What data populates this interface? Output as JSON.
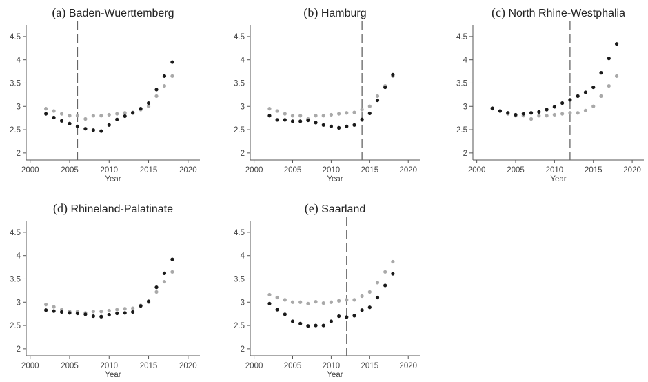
{
  "colors": {
    "series_black": "#1a1a1a",
    "series_grey": "#a9a9a9"
  },
  "chart_data": [
    {
      "type": "scatter",
      "panel_tag": "(a)",
      "title": "Baden-Wuerttemberg",
      "xlabel": "Year",
      "ylabel": "",
      "xlim": [
        1999.5,
        2021.5
      ],
      "ylim": [
        1.85,
        4.75
      ],
      "x_ticks": [
        2000,
        2005,
        2010,
        2015,
        2020
      ],
      "y_ticks": [
        2,
        2.5,
        3,
        3.5,
        4,
        4.5
      ],
      "x_tick_labels": [
        "2000",
        "2005",
        "2010",
        "2015",
        "2020"
      ],
      "y_tick_labels": [
        "2",
        "2.5",
        "3",
        "3.5",
        "4",
        "4.5"
      ],
      "vline": 2006,
      "grid": false,
      "x": [
        2002,
        2003,
        2004,
        2005,
        2006,
        2007,
        2008,
        2009,
        2010,
        2011,
        2012,
        2013,
        2014,
        2015,
        2016,
        2017,
        2018
      ],
      "series": [
        {
          "color": "#a9a9a9",
          "values": [
            2.95,
            2.9,
            2.84,
            2.8,
            2.8,
            2.73,
            2.8,
            2.8,
            2.82,
            2.84,
            2.86,
            2.87,
            2.93,
            3.0,
            3.22,
            3.44,
            3.65
          ]
        },
        {
          "color": "#1a1a1a",
          "values": [
            2.84,
            2.76,
            2.69,
            2.63,
            2.57,
            2.52,
            2.49,
            2.47,
            2.6,
            2.72,
            2.79,
            2.86,
            2.95,
            3.07,
            3.36,
            3.65,
            3.95
          ]
        }
      ]
    },
    {
      "type": "scatter",
      "panel_tag": "(b)",
      "title": "Hamburg",
      "xlabel": "Year",
      "ylabel": "",
      "xlim": [
        1999.5,
        2021.5
      ],
      "ylim": [
        1.85,
        4.75
      ],
      "x_ticks": [
        2000,
        2005,
        2010,
        2015,
        2020
      ],
      "y_ticks": [
        2,
        2.5,
        3,
        3.5,
        4,
        4.5
      ],
      "x_tick_labels": [
        "2000",
        "2005",
        "2010",
        "2015",
        "2020"
      ],
      "y_tick_labels": [
        "2",
        "2.5",
        "3",
        "3.5",
        "4",
        "4.5"
      ],
      "vline": 2014,
      "grid": false,
      "x": [
        2002,
        2003,
        2004,
        2005,
        2006,
        2007,
        2008,
        2009,
        2010,
        2011,
        2012,
        2013,
        2014,
        2015,
        2016,
        2017,
        2018
      ],
      "series": [
        {
          "color": "#a9a9a9",
          "values": [
            2.95,
            2.9,
            2.84,
            2.8,
            2.8,
            2.73,
            2.8,
            2.8,
            2.82,
            2.84,
            2.86,
            2.87,
            2.93,
            3.0,
            3.22,
            3.44,
            3.65
          ]
        },
        {
          "color": "#1a1a1a",
          "values": [
            2.8,
            2.71,
            2.71,
            2.68,
            2.68,
            2.7,
            2.65,
            2.6,
            2.57,
            2.54,
            2.57,
            2.6,
            2.72,
            2.85,
            3.13,
            3.41,
            3.68
          ]
        }
      ]
    },
    {
      "type": "scatter",
      "panel_tag": "(c)",
      "title": "North Rhine-Westphalia",
      "xlabel": "Year",
      "ylabel": "",
      "xlim": [
        1999.5,
        2021.5
      ],
      "ylim": [
        1.85,
        4.75
      ],
      "x_ticks": [
        2000,
        2005,
        2010,
        2015,
        2020
      ],
      "y_ticks": [
        2,
        2.5,
        3,
        3.5,
        4,
        4.5
      ],
      "x_tick_labels": [
        "2000",
        "2005",
        "2010",
        "2015",
        "2020"
      ],
      "y_tick_labels": [
        "2",
        "2.5",
        "3",
        "3.5",
        "4",
        "4.5"
      ],
      "vline": 2012,
      "grid": false,
      "x": [
        2002,
        2003,
        2004,
        2005,
        2006,
        2007,
        2008,
        2009,
        2010,
        2011,
        2012,
        2013,
        2014,
        2015,
        2016,
        2017,
        2018
      ],
      "series": [
        {
          "color": "#a9a9a9",
          "values": [
            2.95,
            2.9,
            2.84,
            2.8,
            2.8,
            2.73,
            2.8,
            2.8,
            2.82,
            2.84,
            2.86,
            2.86,
            2.91,
            3.0,
            3.22,
            3.44,
            3.65
          ]
        },
        {
          "color": "#1a1a1a",
          "values": [
            2.96,
            2.9,
            2.86,
            2.82,
            2.84,
            2.86,
            2.88,
            2.93,
            2.99,
            3.07,
            3.14,
            3.22,
            3.3,
            3.41,
            3.72,
            4.03,
            4.34
          ]
        }
      ]
    },
    {
      "type": "scatter",
      "panel_tag": "(d)",
      "title": "Rhineland-Palatinate",
      "xlabel": "Year",
      "ylabel": "",
      "xlim": [
        1999.5,
        2021.5
      ],
      "ylim": [
        1.85,
        4.75
      ],
      "x_ticks": [
        2000,
        2005,
        2010,
        2015,
        2020
      ],
      "y_ticks": [
        2,
        2.5,
        3,
        3.5,
        4,
        4.5
      ],
      "x_tick_labels": [
        "2000",
        "2005",
        "2010",
        "2015",
        "2020"
      ],
      "y_tick_labels": [
        "2",
        "2.5",
        "3",
        "3.5",
        "4",
        "4.5"
      ],
      "vline": null,
      "grid": false,
      "x": [
        2002,
        2003,
        2004,
        2005,
        2006,
        2007,
        2008,
        2009,
        2010,
        2011,
        2012,
        2013,
        2014,
        2015,
        2016,
        2017,
        2018
      ],
      "series": [
        {
          "color": "#a9a9a9",
          "values": [
            2.95,
            2.9,
            2.84,
            2.8,
            2.8,
            2.77,
            2.8,
            2.8,
            2.82,
            2.84,
            2.86,
            2.87,
            2.93,
            3.0,
            3.22,
            3.44,
            3.65
          ]
        },
        {
          "color": "#1a1a1a",
          "values": [
            2.83,
            2.81,
            2.79,
            2.77,
            2.76,
            2.74,
            2.7,
            2.69,
            2.73,
            2.76,
            2.77,
            2.79,
            2.92,
            3.02,
            3.32,
            3.62,
            3.92
          ]
        }
      ]
    },
    {
      "type": "scatter",
      "panel_tag": "(e)",
      "title": "Saarland",
      "xlabel": "Year",
      "ylabel": "",
      "xlim": [
        1999.5,
        2021.5
      ],
      "ylim": [
        1.85,
        4.75
      ],
      "x_ticks": [
        2000,
        2005,
        2010,
        2015,
        2020
      ],
      "y_ticks": [
        2,
        2.5,
        3,
        3.5,
        4,
        4.5
      ],
      "x_tick_labels": [
        "2000",
        "2005",
        "2010",
        "2015",
        "2020"
      ],
      "y_tick_labels": [
        "2",
        "2.5",
        "3",
        "3.5",
        "4",
        "4.5"
      ],
      "vline": 2012,
      "grid": false,
      "x": [
        2002,
        2003,
        2004,
        2005,
        2006,
        2007,
        2008,
        2009,
        2010,
        2011,
        2012,
        2013,
        2014,
        2015,
        2016,
        2017,
        2018
      ],
      "series": [
        {
          "color": "#a9a9a9",
          "values": [
            3.16,
            3.1,
            3.05,
            3.0,
            3.0,
            2.97,
            3.01,
            2.98,
            3.0,
            3.03,
            3.05,
            3.05,
            3.13,
            3.22,
            3.42,
            3.65,
            3.87
          ]
        },
        {
          "color": "#1a1a1a",
          "values": [
            2.97,
            2.84,
            2.74,
            2.59,
            2.54,
            2.49,
            2.5,
            2.5,
            2.59,
            2.7,
            2.68,
            2.71,
            2.83,
            2.89,
            3.1,
            3.36,
            3.61
          ]
        }
      ]
    }
  ]
}
